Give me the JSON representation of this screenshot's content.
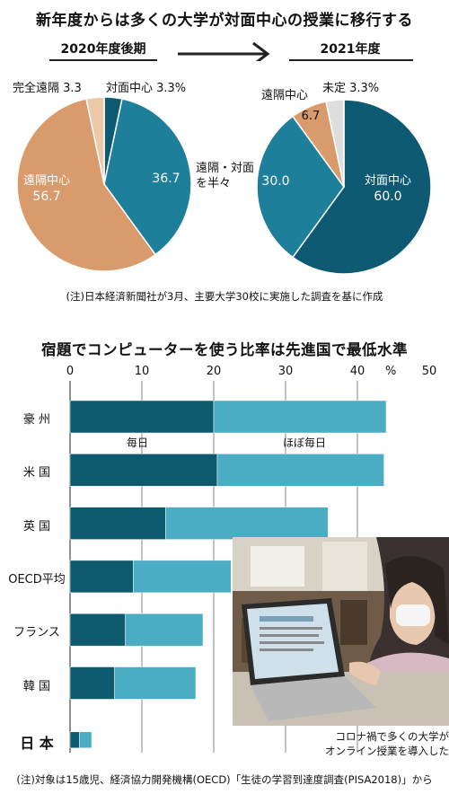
{
  "title_top": "新年度からは多くの大学が対面中心の授業に移行する",
  "period_left": "2020年度後期",
  "period_right": "2021年度",
  "note_top": "(注)日本経済新聞社が3月、主要大学30校に実施した調査を基に作成",
  "title_bottom": "宿題でコンピューターを使う比率は先進国で最低水準",
  "note_bottom": "(注)対象は15歳児、経済協力開発機構(OECD)「生徒の学習到達度調査(PISA2018)」から",
  "photo_caption_line1": "コロナ禍で多くの大学が",
  "photo_caption_line2": "オンライン授業を導入した",
  "pie_labels": {
    "p1_kanzen": "完全遠隔 3.3",
    "p1_taimen": "対面中心 3.3%",
    "p1_hanhan_1": "遠隔・対面",
    "p1_hanhan_2": "を半々",
    "p1_hanhan_val": "36.7",
    "p1_enkaku_name": "遠隔中心",
    "p1_enkaku_val": "56.7",
    "p2_enkaku_name": "遠隔中心",
    "p2_enkaku_val": "6.7",
    "p2_mitei": "未定 3.3%",
    "p2_hanhan_val": "30.0",
    "p2_taimen_name": "対面中心",
    "p2_taimen_val": "60.0"
  },
  "bar_legend": {
    "daily": "毎日",
    "almost_daily": "ほぼ毎日"
  },
  "colors": {
    "dark_teal": "#0e5a72",
    "teal": "#1d7f99",
    "light_teal": "#4aa9bf",
    "bar_dark": "#0e5a6e",
    "bar_light": "#4aadc4",
    "tan": "#d99a6c",
    "light_tan": "#ecc9a8",
    "grey": "#dedede"
  },
  "chart_data": [
    {
      "type": "pie",
      "title": "2020年度後期",
      "labels": [
        "対面中心",
        "遠隔・対面を半々",
        "遠隔中心",
        "完全遠隔"
      ],
      "values": [
        3.3,
        36.7,
        56.7,
        3.3
      ],
      "unit": "%"
    },
    {
      "type": "pie",
      "title": "2021年度",
      "labels": [
        "対面中心",
        "遠隔中心",
        "未定",
        "遠隔・対面を半々"
      ],
      "values": [
        60.0,
        6.7,
        3.3,
        30.0
      ],
      "unit": "%"
    },
    {
      "type": "bar",
      "orientation": "horizontal",
      "stacked": true,
      "title": "宿題でコンピューターを使う比率は先進国で最低水準",
      "categories": [
        "豪 州",
        "米 国",
        "英 国",
        "OECD平均",
        "フランス",
        "韓 国",
        "日 本"
      ],
      "series": [
        {
          "name": "毎日",
          "values": [
            20.0,
            20.5,
            13.3,
            8.8,
            7.7,
            6.2,
            1.3
          ]
        },
        {
          "name": "ほぼ毎日",
          "values": [
            24.0,
            23.2,
            22.6,
            13.6,
            10.8,
            11.3,
            1.7
          ]
        }
      ],
      "xlim": [
        0,
        50
      ],
      "xticks": [
        "0",
        "10",
        "20",
        "30",
        "40",
        "50"
      ],
      "unit_label": "%"
    }
  ]
}
